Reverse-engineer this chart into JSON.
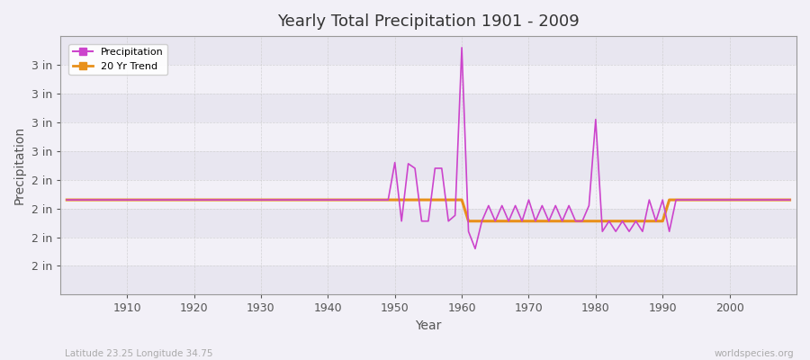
{
  "title": "Yearly Total Precipitation 1901 - 2009",
  "xlabel": "Year",
  "ylabel": "Precipitation",
  "subtitle_left": "Latitude 23.25 Longitude 34.75",
  "subtitle_right": "worldspecies.org",
  "bg_color": "#f2f0f7",
  "band_colors": [
    "#e8e6f0",
    "#f2f0f7"
  ],
  "precip_color": "#cc44cc",
  "trend_color": "#e8901a",
  "xlim_min": 1900,
  "xlim_max": 2010,
  "ylim_min": 0.0,
  "ylim_max": 4.5,
  "xticks": [
    1910,
    1920,
    1930,
    1940,
    1950,
    1960,
    1970,
    1980,
    1990,
    2000
  ],
  "ytick_positions": [
    0.5,
    1.0,
    1.5,
    2.0,
    2.5,
    3.0,
    3.5,
    4.0
  ],
  "ytick_labels": [
    "2 in",
    "2 in",
    "2 in",
    "2 in",
    "3 in",
    "3 in",
    "3 in",
    "3 in"
  ],
  "years": [
    1901,
    1902,
    1903,
    1904,
    1905,
    1906,
    1907,
    1908,
    1909,
    1910,
    1911,
    1912,
    1913,
    1914,
    1915,
    1916,
    1917,
    1918,
    1919,
    1920,
    1921,
    1922,
    1923,
    1924,
    1925,
    1926,
    1927,
    1928,
    1929,
    1930,
    1931,
    1932,
    1933,
    1934,
    1935,
    1936,
    1937,
    1938,
    1939,
    1940,
    1941,
    1942,
    1943,
    1944,
    1945,
    1946,
    1947,
    1948,
    1949,
    1950,
    1951,
    1952,
    1953,
    1954,
    1955,
    1956,
    1957,
    1958,
    1959,
    1960,
    1961,
    1962,
    1963,
    1964,
    1965,
    1966,
    1967,
    1968,
    1969,
    1970,
    1971,
    1972,
    1973,
    1974,
    1975,
    1976,
    1977,
    1978,
    1979,
    1980,
    1981,
    1982,
    1983,
    1984,
    1985,
    1986,
    1987,
    1988,
    1989,
    1990,
    1991,
    1992,
    1993,
    1994,
    1995,
    1996,
    1997,
    1998,
    1999,
    2000,
    2001,
    2002,
    2003,
    2004,
    2005,
    2006,
    2007,
    2008,
    2009
  ],
  "precip_values": [
    1.65,
    1.65,
    1.65,
    1.65,
    1.65,
    1.65,
    1.65,
    1.65,
    1.65,
    1.65,
    1.65,
    1.65,
    1.65,
    1.65,
    1.65,
    1.65,
    1.65,
    1.65,
    1.65,
    1.65,
    1.65,
    1.65,
    1.65,
    1.65,
    1.65,
    1.65,
    1.65,
    1.65,
    1.65,
    1.65,
    1.65,
    1.65,
    1.65,
    1.65,
    1.65,
    1.65,
    1.65,
    1.65,
    1.65,
    1.65,
    1.65,
    1.65,
    1.65,
    1.65,
    1.65,
    1.65,
    1.65,
    1.65,
    1.65,
    2.3,
    1.28,
    2.28,
    2.2,
    1.28,
    1.28,
    2.2,
    2.2,
    1.28,
    1.38,
    4.3,
    1.1,
    0.8,
    1.28,
    1.55,
    1.28,
    1.55,
    1.28,
    1.55,
    1.28,
    1.65,
    1.28,
    1.55,
    1.28,
    1.55,
    1.28,
    1.55,
    1.28,
    1.28,
    1.55,
    3.05,
    1.1,
    1.28,
    1.1,
    1.28,
    1.1,
    1.28,
    1.1,
    1.65,
    1.28,
    1.65,
    1.1,
    1.65,
    1.65,
    1.65,
    1.65,
    1.65,
    1.65,
    1.65,
    1.65,
    1.65,
    1.65,
    1.65,
    1.65,
    1.65,
    1.65,
    1.65,
    1.65,
    1.65,
    1.65
  ],
  "trend_values": [
    1.65,
    1.65,
    1.65,
    1.65,
    1.65,
    1.65,
    1.65,
    1.65,
    1.65,
    1.65,
    1.65,
    1.65,
    1.65,
    1.65,
    1.65,
    1.65,
    1.65,
    1.65,
    1.65,
    1.65,
    1.65,
    1.65,
    1.65,
    1.65,
    1.65,
    1.65,
    1.65,
    1.65,
    1.65,
    1.65,
    1.65,
    1.65,
    1.65,
    1.65,
    1.65,
    1.65,
    1.65,
    1.65,
    1.65,
    1.65,
    1.65,
    1.65,
    1.65,
    1.65,
    1.65,
    1.65,
    1.65,
    1.65,
    1.65,
    1.65,
    1.65,
    1.65,
    1.65,
    1.65,
    1.65,
    1.65,
    1.65,
    1.65,
    1.65,
    1.65,
    1.28,
    1.28,
    1.28,
    1.28,
    1.28,
    1.28,
    1.28,
    1.28,
    1.28,
    1.28,
    1.28,
    1.28,
    1.28,
    1.28,
    1.28,
    1.28,
    1.28,
    1.28,
    1.28,
    1.28,
    1.28,
    1.28,
    1.28,
    1.28,
    1.28,
    1.28,
    1.28,
    1.28,
    1.28,
    1.28,
    1.65,
    1.65,
    1.65,
    1.65,
    1.65,
    1.65,
    1.65,
    1.65,
    1.65,
    1.65,
    1.65,
    1.65,
    1.65,
    1.65,
    1.65,
    1.65,
    1.65,
    1.65,
    1.65
  ]
}
